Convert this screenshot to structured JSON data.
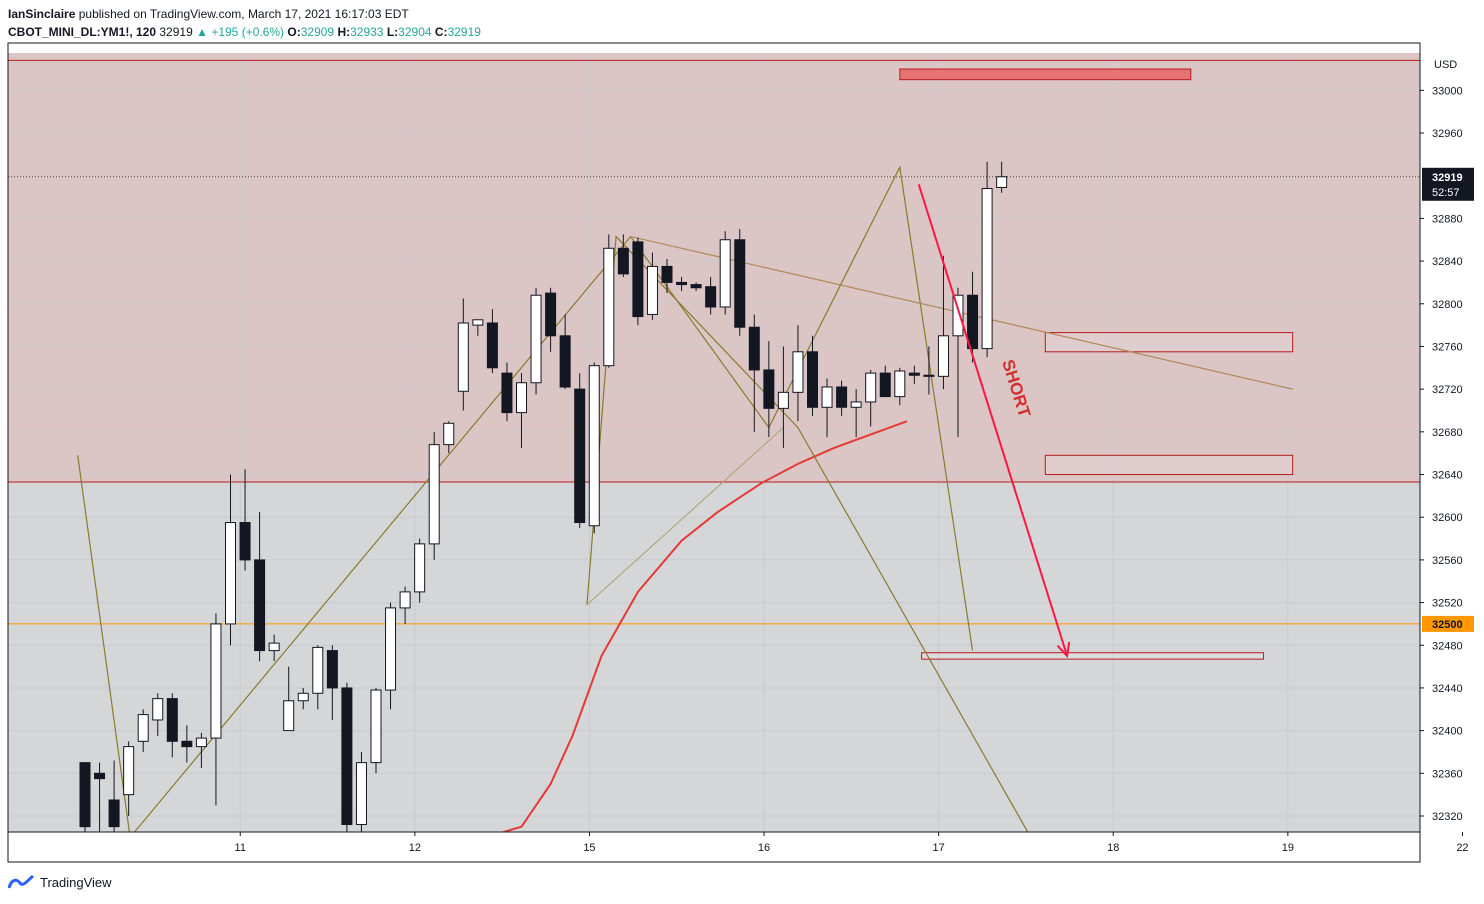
{
  "header": {
    "author": "IanSinclaire",
    "published_text": "published on TradingView.com, March 17, 2021 16:17:03 EDT",
    "symbol": "CBOT_MINI_DL:YM1!, 120",
    "last": "32919",
    "change": "+195 (+0.6%)",
    "o_label": "O:",
    "o": "32909",
    "h_label": "H:",
    "h": "32933",
    "l_label": "L:",
    "l": "32904",
    "c_label": "C:",
    "c": "32919"
  },
  "footer": {
    "brand": "TradingView"
  },
  "chart_data": {
    "type": "candlestick",
    "currency": "USD",
    "ylim": [
      32305,
      33035
    ],
    "y_ticks": [
      32320,
      32360,
      32400,
      32440,
      32480,
      32520,
      32560,
      32600,
      32640,
      32680,
      32720,
      32760,
      32800,
      32840,
      32880,
      32960,
      33000
    ],
    "x_ticks": [
      {
        "label": "11",
        "x": 10.67
      },
      {
        "label": "12",
        "x": 22.67
      },
      {
        "label": "15",
        "x": 34.67
      },
      {
        "label": "16",
        "x": 46.67
      },
      {
        "label": "17",
        "x": 58.67
      },
      {
        "label": "18",
        "x": 70.67
      },
      {
        "label": "19",
        "x": 82.67
      },
      {
        "label": "22",
        "x": 94.67
      }
    ],
    "price_label": {
      "value": "32919",
      "countdown": "52:57"
    },
    "level_label": {
      "value": "32500"
    },
    "candles": [
      [
        32370,
        32370,
        32300,
        32310
      ],
      [
        32360,
        32370,
        32305,
        32355
      ],
      [
        32335,
        32372,
        32300,
        32310
      ],
      [
        32340,
        32390,
        32320,
        32385
      ],
      [
        32390,
        32420,
        32380,
        32415
      ],
      [
        32410,
        32435,
        32395,
        32430
      ],
      [
        32430,
        32435,
        32375,
        32390
      ],
      [
        32390,
        32405,
        32370,
        32385
      ],
      [
        32385,
        32398,
        32365,
        32393
      ],
      [
        32393,
        32510,
        32330,
        32500
      ],
      [
        32500,
        32640,
        32480,
        32595
      ],
      [
        32595,
        32645,
        32550,
        32560
      ],
      [
        32560,
        32605,
        32465,
        32475
      ],
      [
        32475,
        32490,
        32465,
        32482
      ],
      [
        32400,
        32460,
        32400,
        32428
      ],
      [
        32428,
        32440,
        32420,
        32435
      ],
      [
        32435,
        32480,
        32420,
        32478
      ],
      [
        32475,
        32480,
        32410,
        32440
      ],
      [
        32440,
        32445,
        32300,
        32312
      ],
      [
        32312,
        32380,
        32300,
        32370
      ],
      [
        32370,
        32440,
        32360,
        32438
      ],
      [
        32438,
        32520,
        32420,
        32515
      ],
      [
        32515,
        32535,
        32500,
        32530
      ],
      [
        32530,
        32580,
        32520,
        32575
      ],
      [
        32575,
        32680,
        32560,
        32668
      ],
      [
        32668,
        32690,
        32660,
        32688
      ],
      [
        32718,
        32805,
        32700,
        32782
      ],
      [
        32780,
        32785,
        32770,
        32785
      ],
      [
        32782,
        32795,
        32735,
        32740
      ],
      [
        32735,
        32745,
        32690,
        32698
      ],
      [
        32698,
        32735,
        32665,
        32726
      ],
      [
        32726,
        32815,
        32715,
        32808
      ],
      [
        32810,
        32815,
        32755,
        32770
      ],
      [
        32770,
        32790,
        32720,
        32722
      ],
      [
        32720,
        32735,
        32590,
        32595
      ],
      [
        32592,
        32745,
        32585,
        32742
      ],
      [
        32742,
        32865,
        32740,
        32852
      ],
      [
        32852,
        32865,
        32825,
        32828
      ],
      [
        32858,
        32862,
        32780,
        32788
      ],
      [
        32790,
        32848,
        32785,
        32835
      ],
      [
        32835,
        32842,
        32810,
        32820
      ],
      [
        32820,
        32825,
        32812,
        32818
      ],
      [
        32818,
        32820,
        32812,
        32815
      ],
      [
        32816,
        32825,
        32790,
        32797
      ],
      [
        32797,
        32868,
        32790,
        32860
      ],
      [
        32860,
        32870,
        32770,
        32778
      ],
      [
        32778,
        32790,
        32680,
        32738
      ],
      [
        32738,
        32765,
        32675,
        32702
      ],
      [
        32702,
        32760,
        32665,
        32717
      ],
      [
        32717,
        32780,
        32690,
        32755
      ],
      [
        32755,
        32770,
        32695,
        32703
      ],
      [
        32703,
        32730,
        32675,
        32722
      ],
      [
        32722,
        32728,
        32695,
        32703
      ],
      [
        32703,
        32720,
        32675,
        32708
      ],
      [
        32708,
        32738,
        32685,
        32735
      ],
      [
        32735,
        32742,
        32715,
        32713
      ],
      [
        32713,
        32740,
        32705,
        32737
      ],
      [
        32735,
        32742,
        32725,
        32733
      ],
      [
        32733,
        32760,
        32715,
        32732
      ],
      [
        32732,
        32845,
        32720,
        32770
      ],
      [
        32770,
        32815,
        32675,
        32808
      ],
      [
        32808,
        32830,
        32745,
        32758
      ],
      [
        32758,
        32933,
        32750,
        32908
      ],
      [
        32909,
        32933,
        32904,
        32919
      ]
    ],
    "sma": [
      [
        22.67,
        32280
      ],
      [
        30.0,
        32310
      ],
      [
        32.0,
        32350
      ],
      [
        33.5,
        32395
      ],
      [
        35.5,
        32470
      ],
      [
        38.0,
        32530
      ],
      [
        41.0,
        32578
      ],
      [
        43.5,
        32605
      ],
      [
        46.5,
        32632
      ],
      [
        49.0,
        32650
      ],
      [
        51.5,
        32665
      ],
      [
        54.5,
        32680
      ],
      [
        56.5,
        32690
      ]
    ],
    "pattern_line_1": [
      [
        -0.5,
        32658
      ],
      [
        3.1,
        32300
      ],
      [
        37.5,
        32863
      ],
      [
        47.0,
        32684
      ],
      [
        56.0,
        32928
      ],
      [
        61.0,
        32475
      ]
    ],
    "pattern_line_2": [
      [
        34.5,
        32518
      ],
      [
        36.5,
        32863
      ],
      [
        49.0,
        32684
      ],
      [
        65.0,
        32300
      ]
    ],
    "neckline": [
      [
        37.5,
        32863
      ],
      [
        83.0,
        32720
      ]
    ],
    "connector": [
      [
        34.5,
        32518
      ],
      [
        48.0,
        32684
      ]
    ],
    "projection_arrow": {
      "label": "SHORT",
      "from": [
        57.3,
        32912
      ],
      "to": [
        67.5,
        32470
      ]
    },
    "zones": [
      {
        "name": "resistance-zone",
        "from": 32633,
        "to": 33030
      },
      {
        "name": "level-32500",
        "price": 32500
      },
      {
        "name": "current-price",
        "price": 32919
      }
    ],
    "boxes": [
      {
        "name": "target-box-top",
        "x0": 56.0,
        "x1": 76.0,
        "y0": 33010,
        "y1": 33020,
        "filled": true
      },
      {
        "name": "box-32760",
        "x0": 66.0,
        "x1": 83.0,
        "y0": 32755,
        "y1": 32773
      },
      {
        "name": "box-32650",
        "x0": 66.0,
        "x1": 83.0,
        "y0": 32640,
        "y1": 32658
      },
      {
        "name": "box-32475",
        "x0": 57.5,
        "x1": 81.0,
        "y0": 32467,
        "y1": 32473
      }
    ]
  }
}
